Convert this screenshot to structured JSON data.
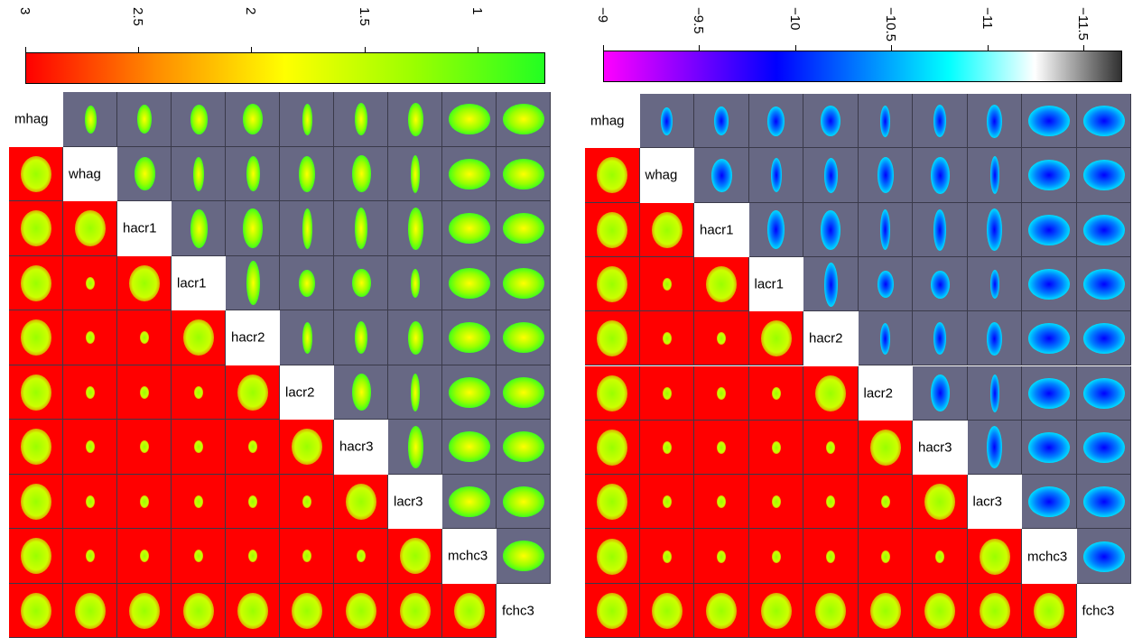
{
  "variables": [
    "mhag",
    "whag",
    "hacr1",
    "lacr1",
    "hacr2",
    "lacr2",
    "hacr3",
    "lacr3",
    "mchc3",
    "fchc3"
  ],
  "colors": {
    "upper_background": "#676884",
    "lower_background": "#ff0000",
    "diagonal_background": "#ffffff"
  },
  "chart_data": [
    {
      "type": "heatmap",
      "layout": "pairs-matrix",
      "title": "",
      "variables": [
        "mhag",
        "whag",
        "hacr1",
        "lacr1",
        "hacr2",
        "lacr2",
        "hacr3",
        "lacr3",
        "mchc3",
        "fchc3"
      ],
      "colorbar": {
        "ticks": [
          3,
          2.5,
          2,
          1.5,
          1
        ],
        "tick_labels": [
          "3",
          "2.5",
          "2",
          "1.5",
          "1"
        ],
        "range": [
          3,
          0.7
        ],
        "palette": [
          "#ff0000",
          "#ff8c00",
          "#ffff00",
          "#9aff00",
          "#22ff22"
        ]
      },
      "grid": false,
      "legend": "top"
    },
    {
      "type": "heatmap",
      "layout": "pairs-matrix",
      "title": "",
      "variables": [
        "mhag",
        "whag",
        "hacr1",
        "lacr1",
        "hacr2",
        "lacr2",
        "hacr3",
        "lacr3",
        "mchc3",
        "fchc3"
      ],
      "colorbar": {
        "ticks": [
          -9,
          -9.5,
          -10,
          -10.5,
          -11,
          -11.5
        ],
        "tick_labels": [
          "−9",
          "−9.5",
          "−10",
          "−10.5",
          "−11",
          "−11.5"
        ],
        "range": [
          -9,
          -11.7
        ],
        "palette": [
          "#ff00ff",
          "#8000ff",
          "#0000ff",
          "#0080ff",
          "#00ffff",
          "#ffffff",
          "#303030"
        ]
      },
      "grid": false,
      "legend": "top"
    }
  ]
}
